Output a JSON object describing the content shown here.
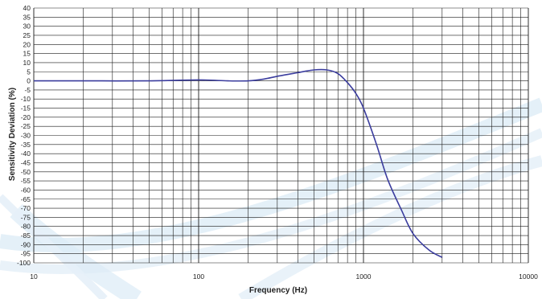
{
  "chart_data": {
    "type": "line",
    "title": "",
    "xlabel": "Frequency (Hz)",
    "ylabel": "Sensitivity Deviation (%)",
    "x_scale": "log",
    "xlim": [
      10,
      10000
    ],
    "ylim": [
      -100,
      40
    ],
    "x_ticks": [
      10,
      100,
      1000,
      10000
    ],
    "x_tick_labels": [
      "10",
      "100",
      "1000",
      "10000"
    ],
    "y_ticks": [
      40,
      35,
      30,
      25,
      20,
      15,
      10,
      5,
      0,
      -5,
      -10,
      -15,
      -20,
      -25,
      -30,
      -35,
      -40,
      -45,
      -50,
      -55,
      -60,
      -65,
      -70,
      -75,
      -80,
      -85,
      -90,
      -95,
      -100
    ],
    "y_tick_labels": [
      "40",
      "35",
      "30",
      "25",
      "20",
      "15",
      "10",
      "5",
      "0",
      "-5",
      "-10",
      "-15",
      "-20",
      "-25",
      "-30",
      "-35",
      "-40",
      "-45",
      "-50",
      "-55",
      "-60",
      "-65",
      "-70",
      "-75",
      "-80",
      "-85",
      "-90",
      "-95",
      "-100"
    ],
    "grid": true,
    "legend": "none",
    "series": [
      {
        "color": "#3b3d9e",
        "x": [
          10,
          20,
          50,
          100,
          150,
          200,
          250,
          300,
          400,
          500,
          600,
          700,
          800,
          900,
          1000,
          1200,
          1400,
          1700,
          2000,
          2500,
          3000
        ],
        "y": [
          0,
          0,
          0,
          0.5,
          0,
          0,
          1,
          2.5,
          4.5,
          6,
          6,
          4,
          -1,
          -7,
          -15,
          -35,
          -54,
          -71,
          -84,
          -93,
          -97
        ]
      }
    ],
    "colors": {
      "grid": "#1a1a1a",
      "line": "#3b3d9e",
      "decor": "#c7dff0"
    }
  }
}
